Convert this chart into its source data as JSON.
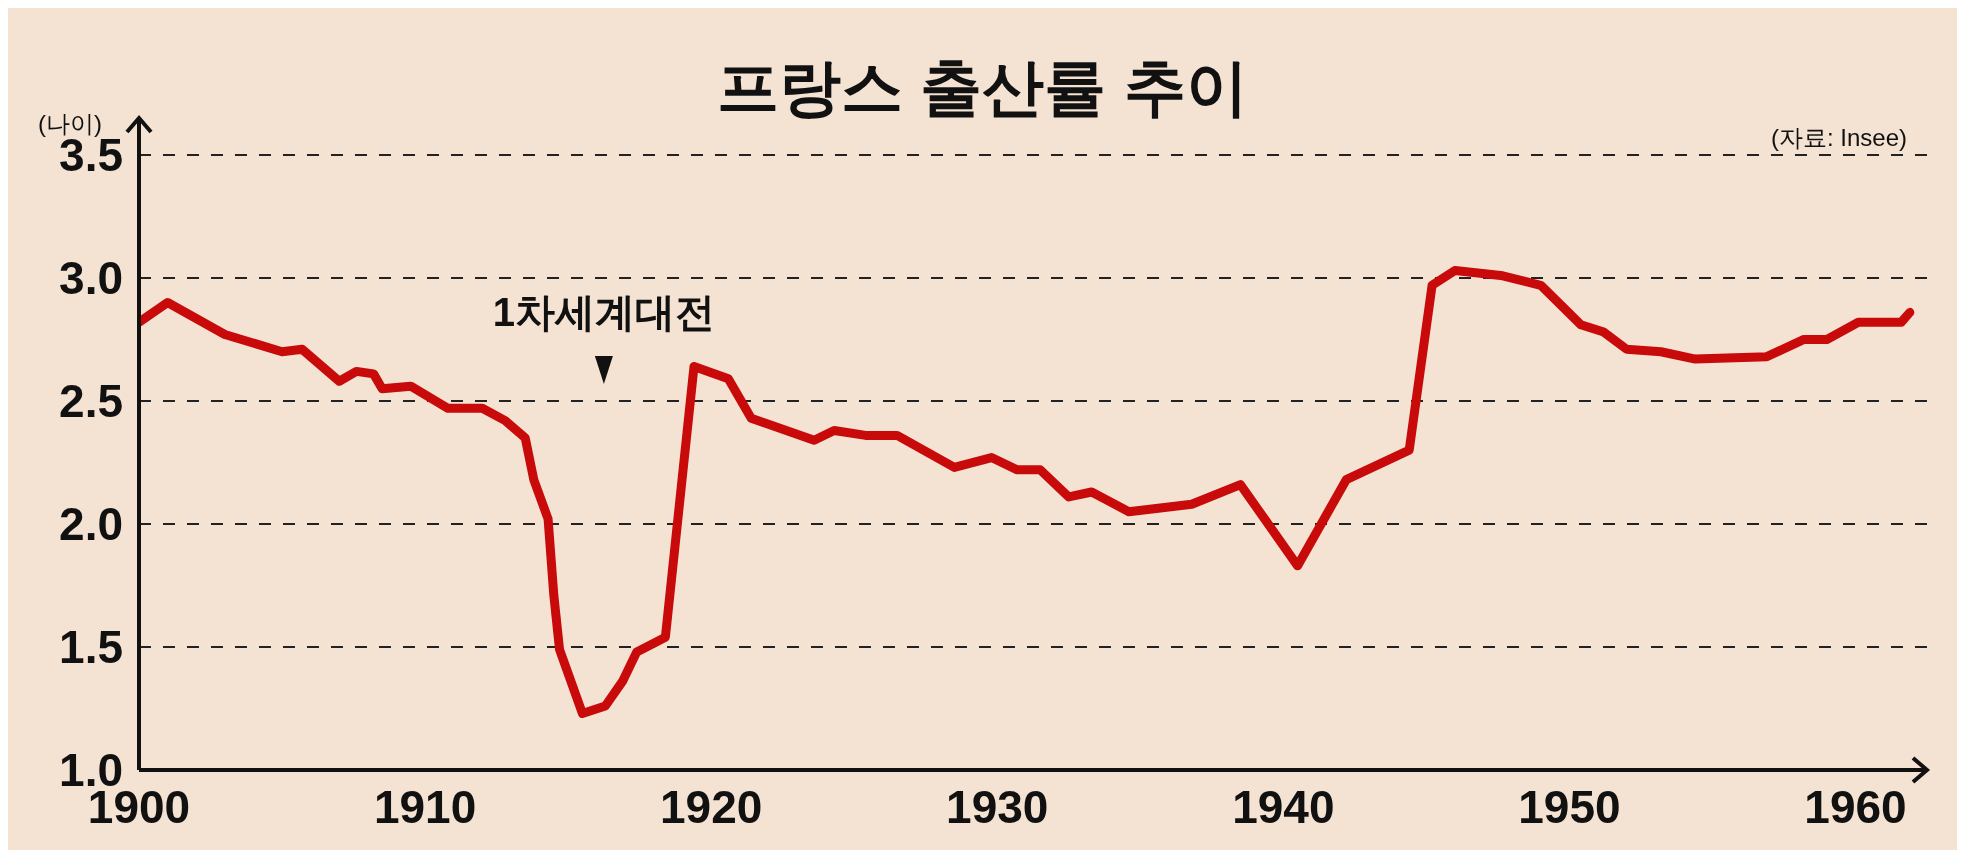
{
  "chart_data": {
    "type": "line",
    "title": "프랑스 출산률 추이",
    "ylabel": "(나이)",
    "annotations": [
      "1차세계대전",
      "(자료: Insee)"
    ],
    "x": [
      1900,
      1901,
      1903,
      1905,
      1905.7,
      1907,
      1907.6,
      1908.2,
      1908.5,
      1909.5,
      1910.8,
      1912,
      1912.8,
      1913.5,
      1913.8,
      1914.3,
      1914.5,
      1914.7,
      1915.5,
      1916.3,
      1916.9,
      1917.4,
      1918.4,
      1919.4,
      1920.6,
      1921.4,
      1923.6,
      1924.3,
      1925.4,
      1926.5,
      1928.5,
      1929.8,
      1930.7,
      1931.5,
      1932.5,
      1933.3,
      1934.6,
      1936.8,
      1938.5,
      1940.5,
      1942.2,
      1944.4,
      1945.2,
      1946,
      1947.6,
      1949,
      1950.4,
      1951.2,
      1952,
      1953.2,
      1954.4,
      1956.9,
      1958.2,
      1959,
      1960.1,
      1961.6,
      1961.9
    ],
    "series": [
      {
        "color": "#c80a0a",
        "values": [
          2.82,
          2.9,
          2.77,
          2.7,
          2.71,
          2.58,
          2.62,
          2.61,
          2.55,
          2.56,
          2.47,
          2.47,
          2.42,
          2.35,
          2.18,
          2.02,
          1.71,
          1.49,
          1.23,
          1.26,
          1.36,
          1.48,
          1.54,
          2.64,
          2.59,
          2.43,
          2.34,
          2.38,
          2.36,
          2.36,
          2.23,
          2.27,
          2.22,
          2.22,
          2.11,
          2.13,
          2.05,
          2.08,
          2.16,
          1.83,
          2.18,
          2.3,
          2.97,
          3.03,
          3.01,
          2.97,
          2.81,
          2.78,
          2.71,
          2.7,
          2.67,
          2.68,
          2.75,
          2.75,
          2.82,
          2.82,
          2.86
        ]
      }
    ],
    "xlim": [
      1900,
      1962.5
    ],
    "xticks": [
      1900,
      1910,
      1920,
      1930,
      1940,
      1950,
      1960
    ],
    "ylim": [
      1,
      3.65
    ],
    "yticks": [
      {
        "value": 1,
        "label": "1.0"
      },
      1.5,
      {
        "value": 2,
        "label": "2.0"
      },
      2.5,
      {
        "value": 3,
        "label": "3.0"
      },
      3.5
    ],
    "grid": "y",
    "legend": false,
    "marker": "none",
    "line_style": "solid"
  }
}
